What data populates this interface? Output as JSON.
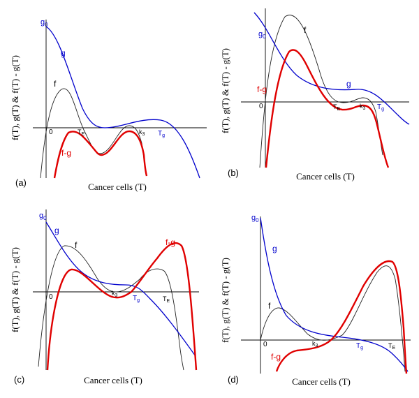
{
  "colors": {
    "f": "#222222",
    "g": "#0000cc",
    "fg": "#e00000",
    "axis": "#000000"
  },
  "common": {
    "ylabel": "f(T), g(T) & f(T) - g(T)",
    "xlabel": "Cancer cells (T)"
  },
  "panels": [
    {
      "letter": "(a)",
      "labels": {
        "g0": "g",
        "g0_sub": "0",
        "g": "g",
        "f": "f",
        "fg": "f-g",
        "origin": "0",
        "te": "T",
        "te_sub": "E",
        "k3": "k",
        "k3_sub": "3",
        "tg": "T",
        "tg_sub": "g"
      }
    },
    {
      "letter": "(b)",
      "labels": {
        "g0": "g",
        "g0_sub": "0",
        "g": "g",
        "f": "f",
        "fg": "f-g",
        "origin": "0",
        "te": "T",
        "te_sub": "E",
        "k3": "k",
        "k3_sub": "3",
        "tg": "T",
        "tg_sub": "g"
      }
    },
    {
      "letter": "(c)",
      "labels": {
        "g0": "g",
        "g0_sub": "0",
        "g": "g",
        "f": "f",
        "fg": "f-g",
        "origin": "0",
        "te": "T",
        "te_sub": "E",
        "k3": "k",
        "k3_sub": "3",
        "tg": "T",
        "tg_sub": "g"
      }
    },
    {
      "letter": "(d)",
      "labels": {
        "g0": "g",
        "g0_sub": "0",
        "g": "g",
        "f": "f",
        "fg": "f-g",
        "origin": "0",
        "te": "T",
        "te_sub": "E",
        "k3": "k",
        "k3_sub": "3",
        "tg": "T",
        "tg_sub": "g"
      }
    }
  ]
}
